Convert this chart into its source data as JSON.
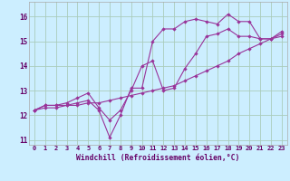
{
  "xlabel": "Windchill (Refroidissement éolien,°C)",
  "bg_color": "#cceeff",
  "line_color": "#993399",
  "grid_color": "#aaccbb",
  "xlim": [
    -0.5,
    23.5
  ],
  "ylim": [
    10.8,
    16.6
  ],
  "yticks": [
    11,
    12,
    13,
    14,
    15,
    16
  ],
  "xticks": [
    0,
    1,
    2,
    3,
    4,
    5,
    6,
    7,
    8,
    9,
    10,
    11,
    12,
    13,
    14,
    15,
    16,
    17,
    18,
    19,
    20,
    21,
    22,
    23
  ],
  "series": [
    [
      12.2,
      12.4,
      12.4,
      12.4,
      12.5,
      12.6,
      12.2,
      11.1,
      12.0,
      13.1,
      13.1,
      15.0,
      15.5,
      15.5,
      15.8,
      15.9,
      15.8,
      15.7,
      16.1,
      15.8,
      15.8,
      15.1,
      15.1,
      15.4
    ],
    [
      12.2,
      12.4,
      12.4,
      12.5,
      12.7,
      12.9,
      12.3,
      11.8,
      12.2,
      13.0,
      14.0,
      14.2,
      13.0,
      13.1,
      13.9,
      14.5,
      15.2,
      15.3,
      15.5,
      15.2,
      15.2,
      15.1,
      15.1,
      15.2
    ],
    [
      12.2,
      12.3,
      12.3,
      12.4,
      12.4,
      12.5,
      12.5,
      12.6,
      12.7,
      12.8,
      12.9,
      13.0,
      13.1,
      13.2,
      13.4,
      13.6,
      13.8,
      14.0,
      14.2,
      14.5,
      14.7,
      14.9,
      15.1,
      15.3
    ]
  ]
}
